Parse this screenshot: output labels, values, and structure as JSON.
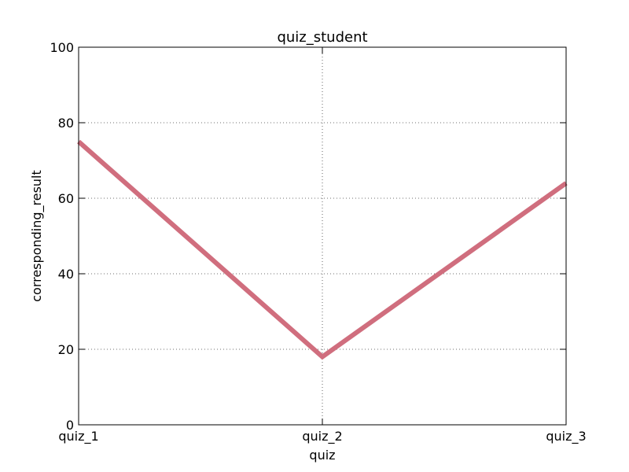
{
  "chart_data": {
    "type": "line",
    "title": "quiz_student",
    "xlabel": "quiz",
    "ylabel": "corresponding_result",
    "categories": [
      "quiz_1",
      "quiz_2",
      "quiz_3"
    ],
    "ylim": [
      0,
      100
    ],
    "yticks": [
      "0",
      "20",
      "40",
      "60",
      "80",
      "100"
    ],
    "grid": true,
    "series": [
      {
        "values": [
          75,
          18,
          64
        ],
        "color": "#d06e7e"
      }
    ]
  }
}
